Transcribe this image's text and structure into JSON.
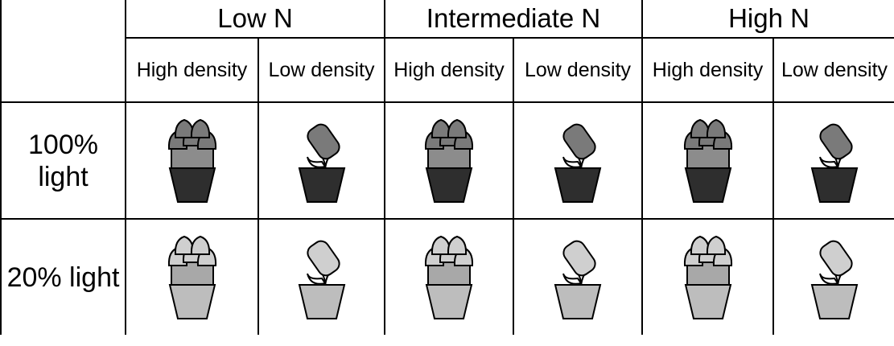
{
  "table": {
    "column_groups": [
      "Low N",
      "Intermediate N",
      "High N"
    ],
    "subcolumns": [
      "High density",
      "Low density",
      "High density",
      "Low density",
      "High density",
      "Low density"
    ],
    "rows": [
      "100% light",
      "20% light"
    ]
  }
}
